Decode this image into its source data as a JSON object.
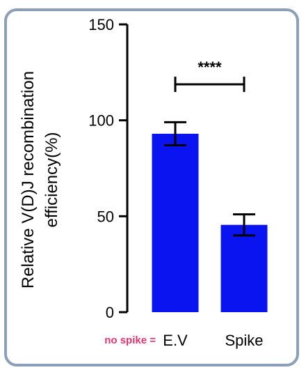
{
  "chart_data": {
    "type": "bar",
    "categories": [
      "E.V",
      "Spike"
    ],
    "series": [
      {
        "values": [
          93,
          45.5
        ],
        "error": [
          6,
          5.5
        ]
      }
    ],
    "ylabel_line1": "Relative V(D)J recombination",
    "ylabel_line2": "efficiency(%)",
    "ylim": [
      0,
      150
    ],
    "yticks": [
      0,
      50,
      100,
      150
    ],
    "significance": {
      "label": "****",
      "between": [
        "E.V",
        "Spike"
      ]
    },
    "annotation": {
      "text": "no spike =",
      "color": "#e5336f"
    },
    "bar_color": "#0a14f0",
    "grid": false
  }
}
